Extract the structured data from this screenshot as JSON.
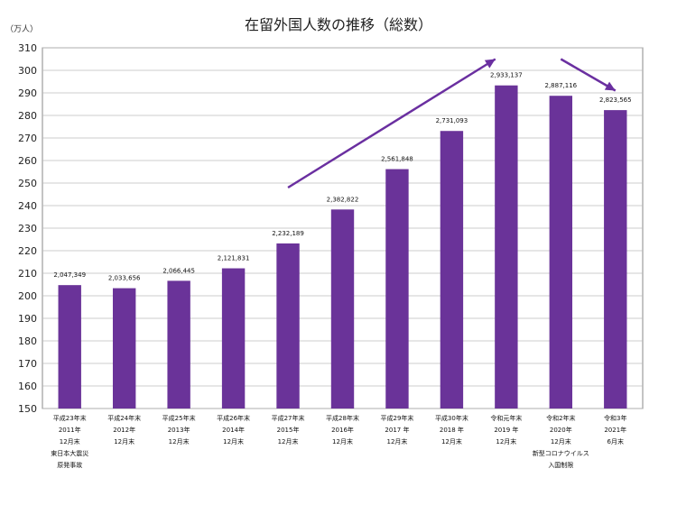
{
  "chart_data": {
    "type": "bar",
    "title": "在留外国人数の推移（総数）",
    "ylabel": "（万人）",
    "ylim": [
      150,
      310
    ],
    "ytick_step": 10,
    "grid": true,
    "bar_color": "#6a3399",
    "arrow_color": "#6a2fa0",
    "categories": [
      [
        "平成23年末",
        "2011年",
        "12月末",
        "東日本大震災",
        "原発事故"
      ],
      [
        "平成24年末",
        "2012年",
        "12月末"
      ],
      [
        "平成25年末",
        "2013年",
        "12月末"
      ],
      [
        "平成26年末",
        "2014年",
        "12月末"
      ],
      [
        "平成27年末",
        "2015年",
        "12月末"
      ],
      [
        "平成28年末",
        "2016年",
        "12月末"
      ],
      [
        "平成29年末",
        "2017 年",
        "12月末"
      ],
      [
        "平成30年末",
        "2018 年",
        "12月末"
      ],
      [
        "令和元年末",
        "2019 年",
        "12月末"
      ],
      [
        "令和2年末",
        "2020年",
        "12月末",
        "新型コロナウイルス",
        "入国制限"
      ],
      [
        "令和3年",
        "2021年",
        "6月末"
      ]
    ],
    "values": [
      204.7349,
      203.3656,
      206.6445,
      212.1831,
      223.2189,
      238.2822,
      256.1848,
      273.1093,
      293.3137,
      288.7116,
      282.3565
    ],
    "value_labels": [
      "2,047,349",
      "2,033,656",
      "2,066,445",
      "2,121,831",
      "2,232,189",
      "2,382,822",
      "2,561,848",
      "2,731,093",
      "2,933,137",
      "2,887,116",
      "2,823,565"
    ],
    "annotations": [
      {
        "type": "arrow",
        "from": [
          4,
          248
        ],
        "to": [
          7.8,
          305
        ]
      },
      {
        "type": "arrow",
        "from": [
          9.0,
          305
        ],
        "to": [
          10.0,
          291
        ]
      }
    ]
  }
}
